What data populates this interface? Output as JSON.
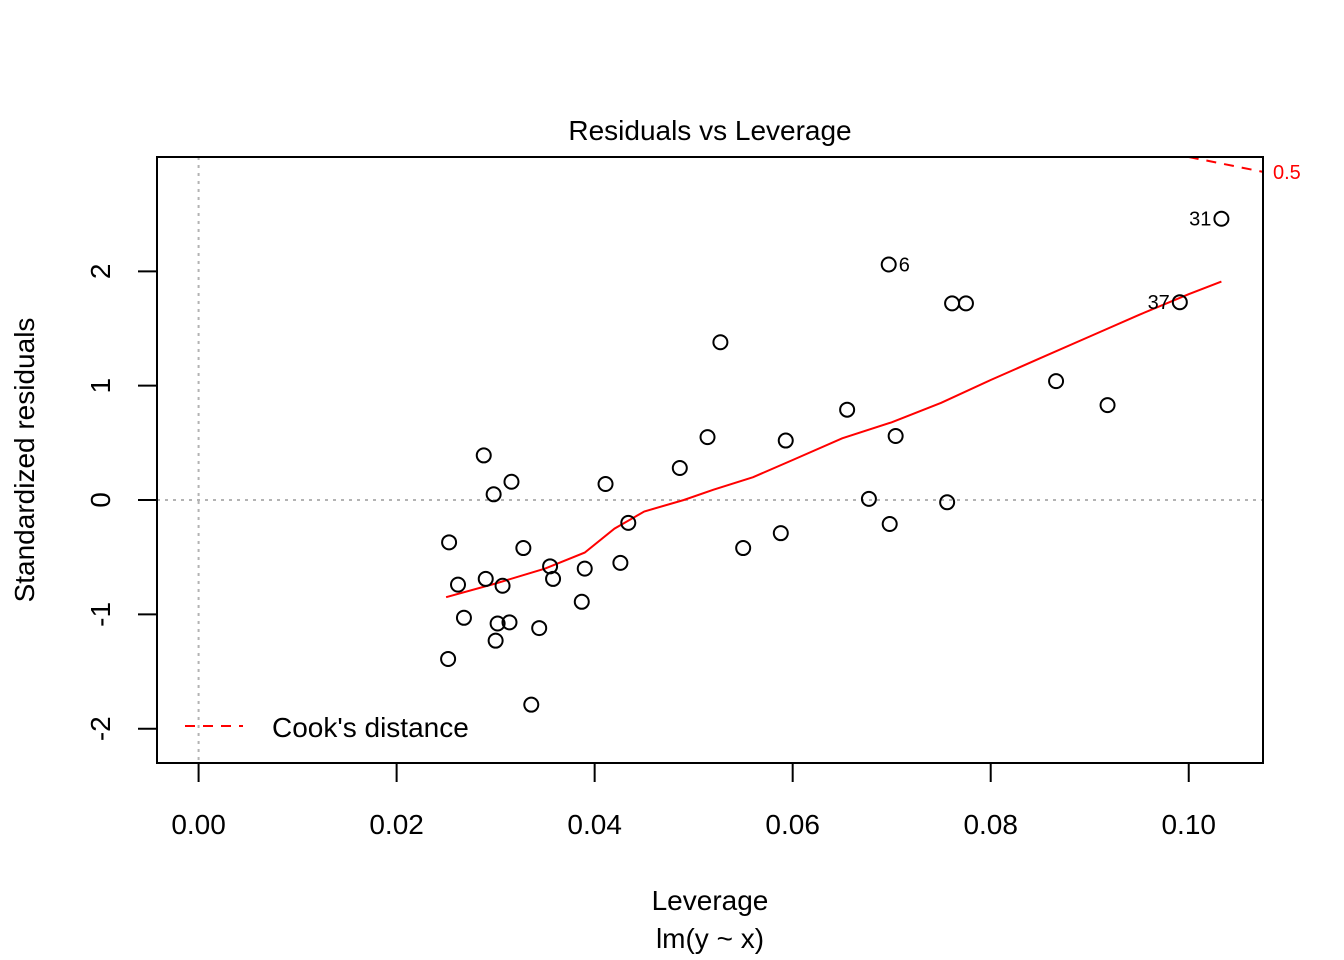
{
  "colors": {
    "accent": "#ff0000",
    "reference": "#b3b3b3",
    "ink": "#000000"
  },
  "chart_data": {
    "type": "scatter",
    "title": "Residuals vs Leverage",
    "xlabel": "Leverage",
    "subtitle": "lm(y ~ x)",
    "ylabel": "Standardized residuals",
    "xlim": [
      -0.0042,
      0.1075
    ],
    "ylim": [
      -2.3,
      3.0
    ],
    "x_ticks": [
      0.0,
      0.02,
      0.04,
      0.06,
      0.08,
      0.1
    ],
    "x_tick_labels": [
      "0.00",
      "0.02",
      "0.04",
      "0.06",
      "0.08",
      "0.10"
    ],
    "y_ticks": [
      -2,
      -1,
      0,
      1,
      2
    ],
    "y_tick_labels": [
      "-2",
      "-1",
      "0",
      "1",
      "2"
    ],
    "points": [
      {
        "x": 0.0252,
        "y": -1.39
      },
      {
        "x": 0.0253,
        "y": -0.37
      },
      {
        "x": 0.0262,
        "y": -0.74
      },
      {
        "x": 0.0268,
        "y": -1.03
      },
      {
        "x": 0.0288,
        "y": 0.39
      },
      {
        "x": 0.029,
        "y": -0.69
      },
      {
        "x": 0.0298,
        "y": 0.05
      },
      {
        "x": 0.03,
        "y": -1.23
      },
      {
        "x": 0.0302,
        "y": -1.08
      },
      {
        "x": 0.0307,
        "y": -0.75
      },
      {
        "x": 0.0314,
        "y": -1.07
      },
      {
        "x": 0.0316,
        "y": 0.16
      },
      {
        "x": 0.0328,
        "y": -0.42
      },
      {
        "x": 0.0336,
        "y": -1.79
      },
      {
        "x": 0.0344,
        "y": -1.12
      },
      {
        "x": 0.0355,
        "y": -0.58
      },
      {
        "x": 0.0358,
        "y": -0.69
      },
      {
        "x": 0.0387,
        "y": -0.89
      },
      {
        "x": 0.039,
        "y": -0.6
      },
      {
        "x": 0.0411,
        "y": 0.14
      },
      {
        "x": 0.0426,
        "y": -0.55
      },
      {
        "x": 0.0434,
        "y": -0.2
      },
      {
        "x": 0.0486,
        "y": 0.28
      },
      {
        "x": 0.0514,
        "y": 0.55
      },
      {
        "x": 0.0527,
        "y": 1.38
      },
      {
        "x": 0.055,
        "y": -0.42
      },
      {
        "x": 0.0588,
        "y": -0.29
      },
      {
        "x": 0.0593,
        "y": 0.52
      },
      {
        "x": 0.0655,
        "y": 0.79
      },
      {
        "x": 0.0677,
        "y": 0.01
      },
      {
        "x": 0.0697,
        "y": 2.06,
        "label": "6"
      },
      {
        "x": 0.0698,
        "y": -0.21
      },
      {
        "x": 0.0704,
        "y": 0.56
      },
      {
        "x": 0.0756,
        "y": -0.02
      },
      {
        "x": 0.0761,
        "y": 1.72
      },
      {
        "x": 0.0775,
        "y": 1.72
      },
      {
        "x": 0.0866,
        "y": 1.04
      },
      {
        "x": 0.0918,
        "y": 0.83
      },
      {
        "x": 0.0991,
        "y": 1.73,
        "label": "37"
      },
      {
        "x": 0.1033,
        "y": 2.46,
        "label": "31"
      }
    ],
    "smoother": {
      "name": "loess",
      "x": [
        0.025,
        0.03,
        0.035,
        0.039,
        0.042,
        0.045,
        0.049,
        0.052,
        0.056,
        0.06,
        0.065,
        0.07,
        0.075,
        0.08,
        0.085,
        0.09,
        0.095,
        0.1,
        0.1033
      ],
      "y": [
        -0.85,
        -0.73,
        -0.6,
        -0.46,
        -0.25,
        -0.1,
        0.0,
        0.09,
        0.2,
        0.35,
        0.54,
        0.68,
        0.85,
        1.05,
        1.24,
        1.43,
        1.62,
        1.8,
        1.91
      ]
    },
    "cooks_distance": {
      "level_label": "0.5",
      "x": [
        0.1,
        0.1075
      ],
      "y": [
        3.0,
        2.87
      ]
    },
    "reference_lines": {
      "h": 0,
      "v": 0
    },
    "legend": {
      "position": "bottom-left",
      "entries": [
        "Cook's distance"
      ]
    }
  }
}
